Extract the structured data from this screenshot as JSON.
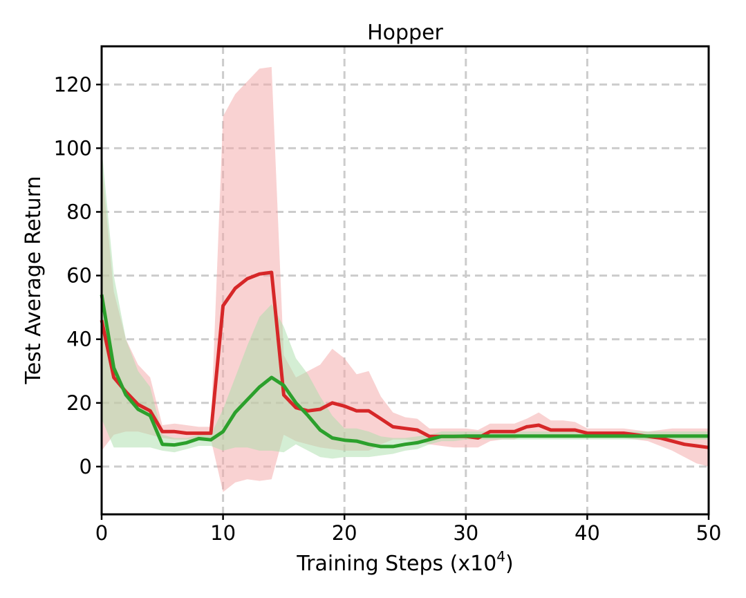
{
  "chart_data": {
    "type": "line",
    "title": "Hopper",
    "xlabel": "Training Steps (x10",
    "xlabel_exponent": "4",
    "xlabel_suffix": ")",
    "ylabel": "Test Average Return",
    "xlim": [
      0,
      50
    ],
    "ylim": [
      -15,
      132
    ],
    "xticks": [
      0,
      10,
      20,
      30,
      40,
      50
    ],
    "yticks": [
      0,
      20,
      40,
      60,
      80,
      100,
      120
    ],
    "grid": true,
    "grid_style": "dashed",
    "legend": "none",
    "series": [
      {
        "color": "#d62728",
        "band_color": "#f4a6a6",
        "x": [
          0,
          1,
          2,
          3,
          4,
          5,
          6,
          7,
          8,
          9,
          10,
          11,
          12,
          13,
          14,
          15,
          16,
          17,
          18,
          19,
          20,
          21,
          22,
          23,
          24,
          25,
          26,
          27,
          28,
          29,
          30,
          31,
          32,
          33,
          34,
          35,
          36,
          37,
          38,
          39,
          40,
          41,
          42,
          43,
          44,
          45,
          46,
          47,
          48,
          49,
          50
        ],
        "values": [
          46,
          28,
          23.5,
          19.5,
          17.5,
          11,
          11,
          10.5,
          10.5,
          10.5,
          50.5,
          56,
          59,
          60.5,
          61,
          22.5,
          18.5,
          17.5,
          18,
          20,
          19,
          17.5,
          17.5,
          15,
          12.5,
          12,
          11.5,
          9.5,
          9.5,
          9.5,
          9.5,
          9,
          11,
          11,
          11,
          12.5,
          13,
          11.5,
          11.5,
          11.5,
          10.5,
          10.5,
          10.5,
          10.5,
          10,
          9.5,
          9,
          8,
          7,
          6.5,
          6
        ],
        "upper": [
          95,
          55,
          40,
          32,
          28,
          13,
          13.5,
          13,
          12.5,
          12.5,
          110,
          117,
          121,
          125,
          125.5,
          35,
          28,
          30,
          32,
          37,
          34,
          29,
          30,
          22,
          17,
          15.5,
          15,
          12,
          12,
          12,
          12,
          11.5,
          13.5,
          13.5,
          13.5,
          15,
          17,
          14.5,
          14.5,
          14,
          12,
          12,
          12,
          12,
          11.5,
          11,
          11.5,
          12,
          12,
          12,
          12
        ],
        "lower": [
          5,
          10,
          11,
          11,
          10,
          9,
          8.5,
          8.5,
          8.5,
          8.5,
          -8,
          -5,
          -4,
          -4.5,
          -4,
          10,
          8,
          7,
          6,
          5.5,
          5,
          5,
          5,
          7,
          8.5,
          8.5,
          8,
          7,
          6.5,
          6,
          6,
          6,
          8,
          8.5,
          8.5,
          10,
          9,
          9,
          9,
          9,
          9,
          9,
          9,
          9,
          8.5,
          8,
          6.5,
          5,
          3,
          1,
          0
        ]
      },
      {
        "color": "#2ca02c",
        "band_color": "#a9dda9",
        "x": [
          0,
          1,
          2,
          3,
          4,
          5,
          6,
          7,
          8,
          9,
          10,
          11,
          12,
          13,
          14,
          15,
          16,
          17,
          18,
          19,
          20,
          21,
          22,
          23,
          24,
          25,
          26,
          27,
          28,
          29,
          30,
          31,
          32,
          33,
          34,
          35,
          36,
          37,
          38,
          39,
          40,
          41,
          42,
          43,
          44,
          45,
          46,
          47,
          48,
          49,
          50
        ],
        "values": [
          54,
          31,
          22.5,
          18,
          16,
          7,
          6.8,
          7.5,
          8.8,
          8.4,
          11,
          17,
          21,
          25,
          28,
          25.5,
          20,
          16,
          11.5,
          9,
          8.3,
          8,
          7,
          6.3,
          6.3,
          7,
          7.5,
          8.5,
          9.5,
          9.5,
          9.6,
          9.6,
          9.6,
          9.6,
          9.6,
          9.6,
          9.6,
          9.6,
          9.6,
          9.6,
          9.6,
          9.6,
          9.6,
          9.6,
          9.6,
          9.6,
          9.6,
          9.6,
          9.6,
          9.6,
          9.6
        ],
        "upper": [
          100,
          60,
          40,
          30,
          25,
          10,
          9,
          9,
          10,
          10,
          18,
          28,
          38,
          47,
          51,
          44,
          34,
          29,
          22,
          16,
          12,
          12,
          11,
          9.5,
          9,
          9,
          9.5,
          10,
          11,
          11,
          11,
          11,
          11,
          11,
          11,
          11,
          11,
          11,
          11,
          11,
          11,
          11,
          11,
          11,
          11,
          11,
          11,
          11,
          11,
          11,
          11
        ],
        "lower": [
          15,
          6,
          6,
          6,
          6,
          5,
          4.5,
          5.5,
          6.5,
          6.5,
          5,
          6,
          6,
          5,
          5,
          4.5,
          7,
          5,
          3,
          2.5,
          3,
          3,
          3,
          3.5,
          4,
          5,
          5.5,
          7,
          8,
          8,
          8.5,
          8.5,
          8.5,
          8.5,
          8.5,
          8.5,
          8.5,
          8.5,
          8.5,
          8.5,
          8.5,
          8.5,
          8.5,
          8.5,
          8.5,
          8.5,
          8.5,
          8.5,
          8.5,
          8.5,
          8.5
        ]
      }
    ]
  }
}
